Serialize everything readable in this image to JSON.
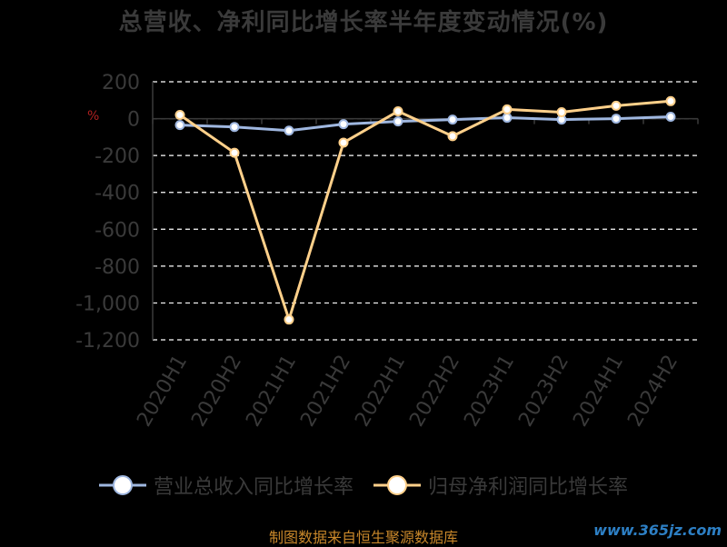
{
  "title": "总营收、净利同比增长率半年度变动情况(%)",
  "unit_mark": "%",
  "legend": [
    {
      "label": "营业总收入同比增长率",
      "color": "#9fb7e0"
    },
    {
      "label": "归母净利润同比增长率",
      "color": "#ffd08a"
    }
  ],
  "source": "制图数据来自恒生聚源数据库",
  "watermark": "www.365jz.com",
  "colors": {
    "axis_text": "#3a3a3a",
    "grid": "#ffffff"
  },
  "chart_data": {
    "type": "line",
    "categories": [
      "2020H1",
      "2020H2",
      "2021H1",
      "2021H2",
      "2022H1",
      "2022H2",
      "2023H1",
      "2023H2",
      "2024H1",
      "2024H2"
    ],
    "ylim": [
      -1200,
      200
    ],
    "yticks": [
      200,
      0,
      -200,
      -400,
      -600,
      -800,
      -1000,
      -1200
    ],
    "ytick_labels": [
      "200",
      "0",
      "-200",
      "-400",
      "-600",
      "-800",
      "-1,000",
      "-1,200"
    ],
    "grid": true,
    "legend_position": "bottom",
    "series": [
      {
        "name": "营业总收入同比增长率",
        "color": "#9fb7e0",
        "values": [
          -35,
          -45,
          -65,
          -30,
          -15,
          -5,
          5,
          -5,
          0,
          10
        ]
      },
      {
        "name": "归母净利润同比增长率",
        "color": "#ffd08a",
        "values": [
          20,
          -185,
          -1090,
          -130,
          40,
          -95,
          50,
          35,
          70,
          95
        ]
      }
    ]
  }
}
